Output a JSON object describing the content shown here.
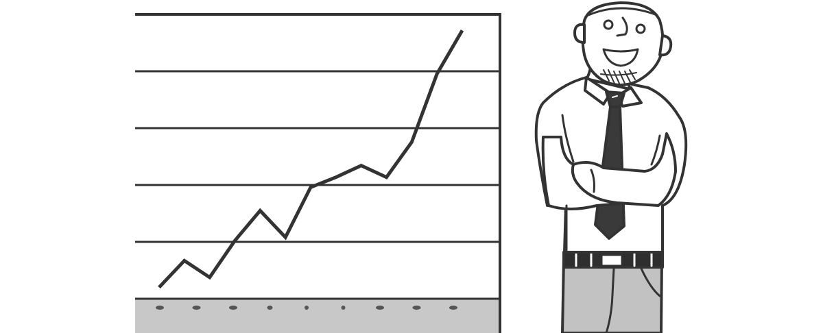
{
  "scene": {
    "colors": {
      "ink": "#333333",
      "background": "#ffffff",
      "ground": "#c8c8c8",
      "trousers": "#c2c2c2",
      "tie": "#3a3a3a",
      "belt": "#2e2e2e"
    },
    "chart_data": {
      "type": "line",
      "x": [
        1,
        2,
        3,
        4,
        5,
        6,
        7,
        8,
        9,
        10,
        11,
        12,
        13
      ],
      "values": [
        0.3,
        1.1,
        0.6,
        1.7,
        2.6,
        1.8,
        3.3,
        3.6,
        3.95,
        3.6,
        4.65,
        6.7,
        8.0
      ],
      "grid": true,
      "ylim": [
        0,
        8.5
      ],
      "xlabel": "",
      "ylabel": "",
      "title": ""
    },
    "ground_marks_count": 9,
    "figure": "man-with-crossed-arms"
  }
}
